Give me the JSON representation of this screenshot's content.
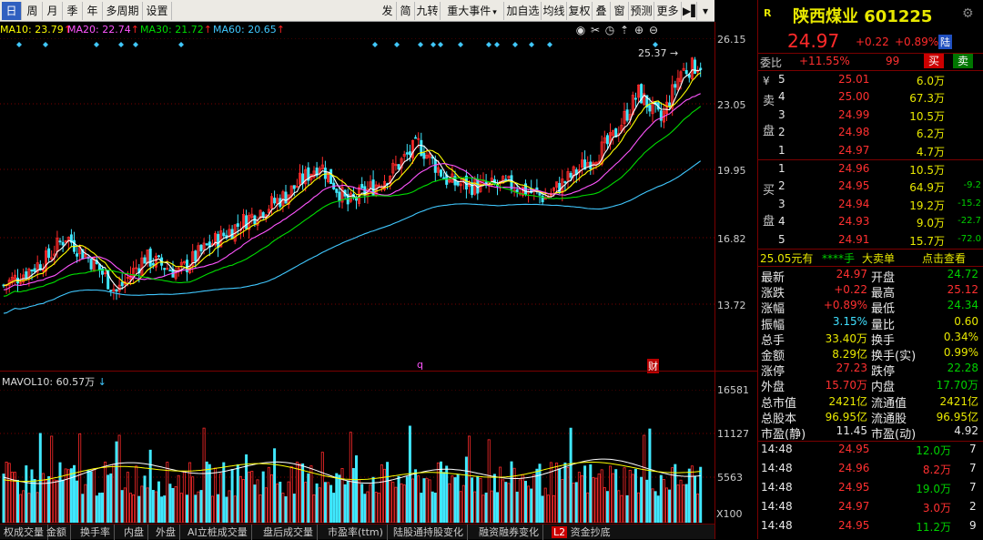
{
  "toolbar": {
    "periods": [
      "日",
      "周",
      "月",
      "季",
      "年",
      "多周期",
      "设置"
    ],
    "tools": [
      "发",
      "简",
      "九转",
      "重大事件",
      "加自选",
      "均线",
      "复权",
      "叠",
      "窗",
      "预测",
      "更多"
    ]
  },
  "ma": {
    "ma10": "MA10: 23.79",
    "ma20": "MA20: 22.74",
    "ma30": "MA30: 21.72",
    "ma60": "MA60: 20.65",
    "arrow": "↑"
  },
  "price_axis": [
    "26.15",
    "23.05",
    "19.95",
    "16.82",
    "13.72"
  ],
  "high_marker": "25.37",
  "event_labels": {
    "q": "q",
    "cai": "财"
  },
  "volume": {
    "label": "MAVOL10: 60.57万",
    "axis": [
      "16581",
      "11127",
      "5563"
    ],
    "unit": "X100"
  },
  "bottom_tabs": [
    "权成交量",
    "金额",
    "换手率",
    "内盘",
    "外盘",
    "AI立桩成交量",
    "盘后成交量",
    "市盈率(ttm)",
    "陆股通持股变化",
    "融资融券变化",
    "资金抄底"
  ],
  "bottom_tab_badge": "L2",
  "stock": {
    "logo": "R",
    "name": "陕西煤业",
    "code": "601225",
    "price": "24.97",
    "change": "+0.22",
    "pct": "+0.89%",
    "tag": "陆"
  },
  "weibi": {
    "label": "委比",
    "value": "+11.55%",
    "diff": "99",
    "buy_btn": "买",
    "sell_btn": "卖"
  },
  "sell_orders": [
    {
      "level": "5",
      "price": "25.01",
      "vol": "6.0万"
    },
    {
      "level": "4",
      "price": "25.00",
      "vol": "67.3万"
    },
    {
      "level": "3",
      "price": "24.99",
      "vol": "10.5万"
    },
    {
      "level": "2",
      "price": "24.98",
      "vol": "6.2万"
    },
    {
      "level": "1",
      "price": "24.97",
      "vol": "4.7万"
    }
  ],
  "sell_side_label": [
    "¥",
    "卖",
    "盘"
  ],
  "buy_orders": [
    {
      "level": "1",
      "price": "24.96",
      "vol": "10.5万",
      "chg": ""
    },
    {
      "level": "2",
      "price": "24.95",
      "vol": "64.9万",
      "chg": "-9.2"
    },
    {
      "level": "3",
      "price": "24.94",
      "vol": "19.2万",
      "chg": "-15.2"
    },
    {
      "level": "4",
      "price": "24.93",
      "vol": "9.0万",
      "chg": "-22.7"
    },
    {
      "level": "5",
      "price": "24.91",
      "vol": "15.7万",
      "chg": "-72.0"
    }
  ],
  "buy_side_label": [
    "买",
    "盘"
  ],
  "big_order": {
    "text1": "25.05元有",
    "text2": "****手",
    "text3": "大卖单",
    "link": "点击查看"
  },
  "stats": [
    {
      "k1": "最新",
      "v1": "24.97",
      "c1": "r",
      "k2": "开盘",
      "v2": "24.72",
      "c2": "g"
    },
    {
      "k1": "涨跌",
      "v1": "+0.22",
      "c1": "r",
      "k2": "最高",
      "v2": "25.12",
      "c2": "r"
    },
    {
      "k1": "涨幅",
      "v1": "+0.89%",
      "c1": "r",
      "k2": "最低",
      "v2": "24.34",
      "c2": "g"
    },
    {
      "k1": "振幅",
      "v1": "3.15%",
      "c1": "c",
      "k2": "量比",
      "v2": "0.60",
      "c2": "y"
    },
    {
      "k1": "总手",
      "v1": "33.40万",
      "c1": "y",
      "k2": "换手",
      "v2": "0.34%",
      "c2": "y"
    },
    {
      "k1": "金额",
      "v1": "8.29亿",
      "c1": "y",
      "k2": "换手(实)",
      "v2": "0.99%",
      "c2": "y"
    },
    {
      "k1": "涨停",
      "v1": "27.23",
      "c1": "r",
      "k2": "跌停",
      "v2": "22.28",
      "c2": "g"
    },
    {
      "k1": "外盘",
      "v1": "15.70万",
      "c1": "r",
      "k2": "内盘",
      "v2": "17.70万",
      "c2": "g"
    },
    {
      "k1": "总市值",
      "v1": "2421亿",
      "c1": "y",
      "k2": "流通值",
      "v2": "2421亿",
      "c2": "y"
    },
    {
      "k1": "总股本",
      "v1": "96.95亿",
      "c1": "y",
      "k2": "流通股",
      "v2": "96.95亿",
      "c2": "y"
    },
    {
      "k1": "市盈(静)",
      "v1": "11.45",
      "c1": "w",
      "k2": "市盈(动)",
      "v2": "4.92",
      "c2": "w"
    }
  ],
  "ticks": [
    {
      "time": "14:48",
      "price": "24.95",
      "vol": "12.0万",
      "n": "7",
      "pc": "g",
      "vc": "g"
    },
    {
      "time": "14:48",
      "price": "24.96",
      "vol": "8.2万",
      "n": "7",
      "pc": "r",
      "vc": "r"
    },
    {
      "time": "14:48",
      "price": "24.95",
      "vol": "19.0万",
      "n": "7",
      "pc": "g",
      "vc": "g"
    },
    {
      "time": "14:48",
      "price": "24.97",
      "vol": "3.0万",
      "n": "2",
      "pc": "r",
      "vc": "r"
    },
    {
      "time": "14:48",
      "price": "24.95",
      "vol": "11.2万",
      "n": "9",
      "pc": "g",
      "vc": "g"
    }
  ],
  "colors": {
    "up": "#ff2a2a",
    "down": "#40e8ff",
    "ma5": "#ffffff",
    "ma10": "#ffff00",
    "ma20": "#ff55ff",
    "ma30": "#00dd00",
    "ma60": "#40c8ff",
    "grid": "#7a0000"
  }
}
